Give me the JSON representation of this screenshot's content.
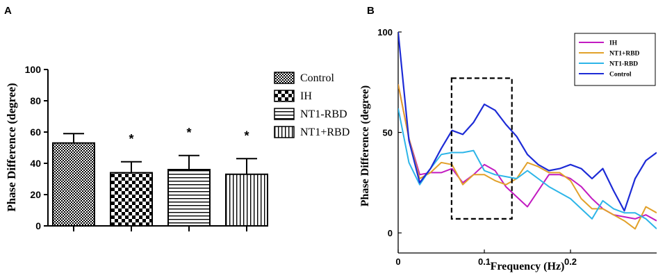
{
  "chart_data": [
    {
      "panel": "A",
      "type": "bar",
      "ylabel": "Phase Difference (degree)",
      "ylim": [
        0,
        100
      ],
      "yticks": [
        0,
        20,
        40,
        60,
        80,
        100
      ],
      "categories": [
        "Control",
        "IH",
        "NT1-RBD",
        "NT1+RBD"
      ],
      "values": [
        53,
        34,
        36,
        33
      ],
      "errors": [
        6,
        7,
        9,
        10
      ],
      "significance": [
        "",
        "*",
        "*",
        "*"
      ],
      "legend": [
        "Control",
        "IH",
        "NT1-RBD",
        "NT1+RBD"
      ],
      "legend_position": "right"
    },
    {
      "panel": "B",
      "type": "line",
      "xlabel": "Frequency (Hz)",
      "ylabel": "Phase Difference (degree)",
      "xlim": [
        0,
        0.3
      ],
      "ylim": [
        -10,
        100
      ],
      "xticks": [
        0,
        0.1,
        0.2
      ],
      "yticks": [
        0,
        50,
        100
      ],
      "x": [
        0,
        0.0125,
        0.025,
        0.0375,
        0.05,
        0.0625,
        0.075,
        0.0875,
        0.1,
        0.1125,
        0.125,
        0.1375,
        0.15,
        0.1625,
        0.175,
        0.1875,
        0.2,
        0.2125,
        0.225,
        0.2375,
        0.25,
        0.2625,
        0.275,
        0.2875,
        0.3
      ],
      "series": [
        {
          "name": "IH",
          "color": "#c21bc1",
          "values": [
            74,
            47,
            29,
            30,
            30,
            32,
            25,
            29,
            34,
            31,
            23,
            18,
            13,
            21,
            29,
            29,
            27,
            23,
            17,
            12,
            9,
            8,
            7,
            9,
            6
          ]
        },
        {
          "name": "NT1+RBD",
          "color": "#e2a12a",
          "values": [
            74,
            47,
            27,
            30,
            35,
            34,
            24,
            29,
            29,
            26,
            24,
            27,
            35,
            33,
            30,
            30,
            26,
            17,
            12,
            12,
            9,
            6,
            2,
            13,
            10
          ]
        },
        {
          "name": "NT1-RBD",
          "color": "#2db5e8",
          "values": [
            62,
            35,
            24,
            32,
            39,
            40,
            40,
            41,
            31,
            29,
            28,
            27,
            31,
            27,
            23,
            20,
            17,
            12,
            7,
            16,
            12,
            10,
            10,
            7,
            2
          ]
        },
        {
          "name": "Control",
          "color": "#1d2bd6",
          "values": [
            100,
            46,
            25,
            32,
            42,
            51,
            49,
            55,
            64,
            61,
            54,
            48,
            39,
            34,
            31,
            32,
            34,
            32,
            27,
            32,
            21,
            11,
            27,
            36,
            40
          ]
        }
      ],
      "legend": [
        "IH",
        "NT1+RBD",
        "NT1-RBD",
        "Control"
      ],
      "legend_position": "top-right",
      "annotation": "dashed box highlighting 0.06–0.13 Hz band",
      "annotation_range": {
        "x": [
          0.062,
          0.132
        ],
        "y": [
          7,
          77
        ]
      }
    }
  ],
  "panel_labels": [
    "A",
    "B"
  ]
}
